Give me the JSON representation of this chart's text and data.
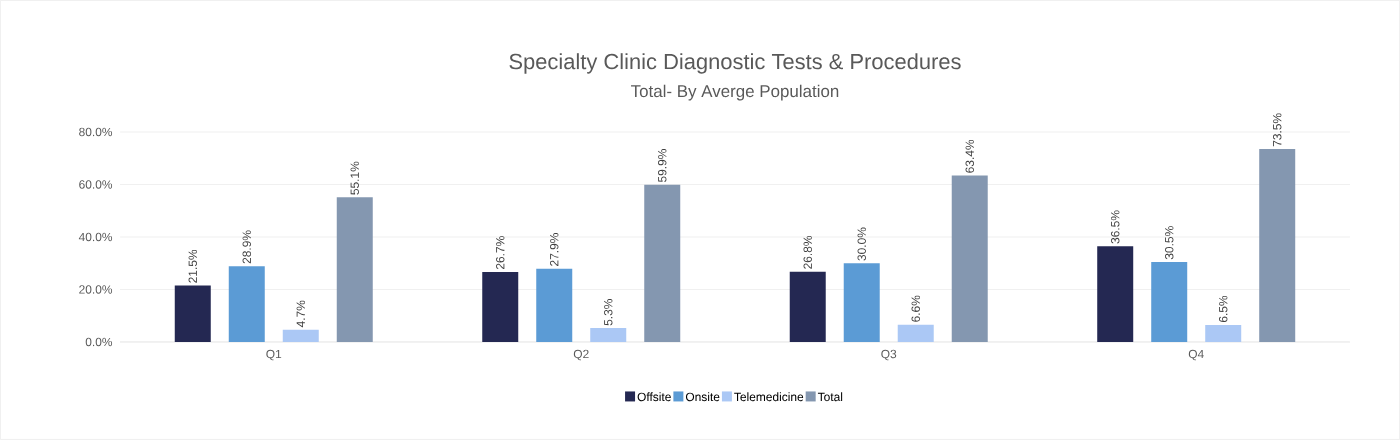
{
  "chart_data": {
    "type": "bar",
    "title": "Specialty Clinic Diagnostic Tests & Procedures",
    "subtitle": "Total- By Averge Population",
    "categories": [
      "Q1",
      "Q2",
      "Q3",
      "Q4"
    ],
    "series": [
      {
        "name": "Offsite",
        "color": "#242852",
        "values": [
          21.5,
          26.7,
          26.8,
          36.5
        ],
        "value_labels": [
          "21.5%",
          "26.7%",
          "26.8%",
          "36.5%"
        ]
      },
      {
        "name": "Onsite",
        "color": "#5b9bd5",
        "values": [
          28.9,
          27.9,
          30.0,
          30.5
        ],
        "value_labels": [
          "28.9%",
          "27.9%",
          "30.0%",
          "30.5%"
        ]
      },
      {
        "name": "Telemedicine",
        "color": "#abc8f5",
        "values": [
          4.7,
          5.3,
          6.6,
          6.5
        ],
        "value_labels": [
          "4.7%",
          "5.3%",
          "6.6%",
          "6.5%"
        ]
      },
      {
        "name": "Total",
        "color": "#8497b0",
        "values": [
          55.1,
          59.9,
          63.4,
          73.5
        ],
        "value_labels": [
          "55.1%",
          "59.9%",
          "63.4%",
          "73.5%"
        ]
      }
    ],
    "ylim": [
      0,
      80
    ],
    "yticks": [
      {
        "value": 0,
        "label": "0.0%"
      },
      {
        "value": 20,
        "label": "20.0%"
      },
      {
        "value": 40,
        "label": "40.0%"
      },
      {
        "value": 60,
        "label": "60.0%"
      },
      {
        "value": 80,
        "label": "80.0%"
      }
    ],
    "grid": "y",
    "legend": "bottom"
  }
}
